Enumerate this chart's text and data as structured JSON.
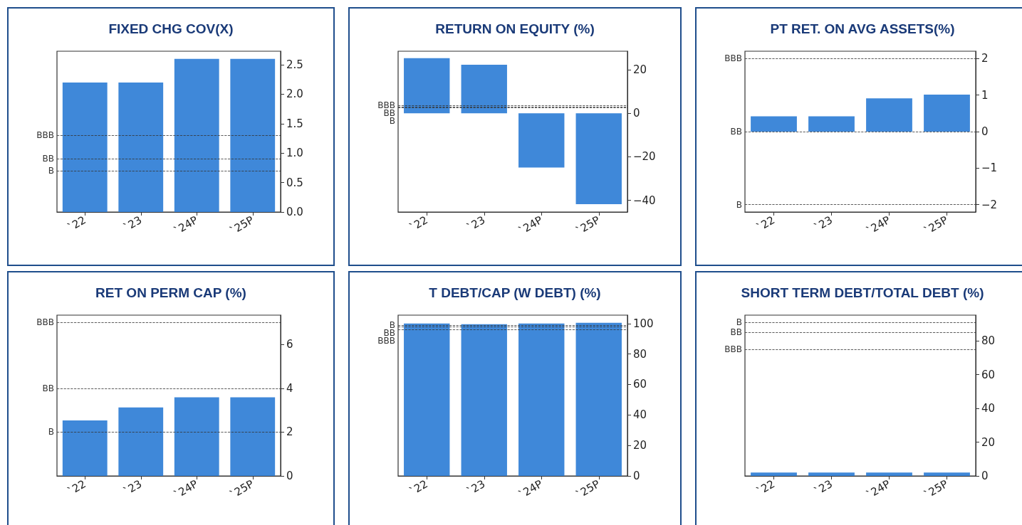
{
  "chart_data": [
    {
      "type": "bar",
      "title": "FIXED CHG COV(X)",
      "categories": [
        "`22",
        "`23",
        "`24P",
        "`25P"
      ],
      "values": [
        2.2,
        2.2,
        2.6,
        2.6
      ],
      "color": "#3f88d9",
      "ylim": [
        0,
        2.73
      ],
      "yticks": [
        {
          "value": 0,
          "label": "0.0"
        },
        {
          "value": 0.5,
          "label": "0.5"
        },
        {
          "value": 1,
          "label": "1.0"
        },
        {
          "value": 1.5,
          "label": "1.5"
        },
        {
          "value": 2,
          "label": "2.0"
        },
        {
          "value": 2.5,
          "label": "2.5"
        }
      ],
      "ref_lines": [
        {
          "axis": "y",
          "value": 1.3,
          "label": "BBB",
          "color": "#333333",
          "line_style": "dashed"
        },
        {
          "axis": "y",
          "value": 0.9,
          "label": "BB",
          "color": "#333333",
          "line_style": "dashed"
        },
        {
          "axis": "y",
          "value": 0.7,
          "label": "B",
          "color": "#333333",
          "line_style": "dashed"
        }
      ]
    },
    {
      "type": "bar",
      "title": "RETURN ON EQUITY (%)",
      "categories": [
        "`22",
        "`23",
        "`24P",
        "`25P"
      ],
      "values": [
        25.4,
        22.4,
        -24.9,
        -41.8
      ],
      "color": "#3f88d9",
      "ylim": [
        -45.4,
        28.6
      ],
      "yticks": [
        {
          "value": -40,
          "label": "−40"
        },
        {
          "value": -20,
          "label": "−20"
        },
        0,
        20
      ],
      "ref_lines": [
        {
          "axis": "y",
          "value": 3.6,
          "label": "BBB",
          "color": "#333333",
          "line_style": "dashed"
        },
        {
          "axis": "y",
          "value": 2.9,
          "label": "BB",
          "color": "#333333",
          "line_style": "dashed"
        },
        {
          "axis": "y",
          "value": 2.7,
          "label": "B",
          "color": "#333333",
          "line_style": "dashed"
        }
      ]
    },
    {
      "type": "bar",
      "title": "PT RET. ON AVG ASSETS(%)",
      "categories": [
        "`22",
        "`23",
        "`24P",
        "`25P"
      ],
      "values": [
        0.42,
        0.42,
        0.91,
        1.01
      ],
      "color": "#3f88d9",
      "ylim": [
        -2.2,
        2.2
      ],
      "yticks": [
        {
          "value": -2,
          "label": "−2"
        },
        {
          "value": -1,
          "label": "−1"
        },
        0,
        1,
        2
      ],
      "ref_lines": [
        {
          "axis": "y",
          "value": 2,
          "label": "BBB",
          "color": "#333333",
          "line_style": "dashed"
        },
        {
          "axis": "y",
          "value": 0,
          "label": "BB",
          "color": "#333333",
          "line_style": "dashed"
        },
        {
          "axis": "y",
          "value": -2,
          "label": "B",
          "color": "#333333",
          "line_style": "dashed"
        }
      ]
    },
    {
      "type": "bar",
      "title": "RET ON PERM CAP (%)",
      "categories": [
        "`22",
        "`23",
        "`24P",
        "`25P"
      ],
      "values": [
        2.53,
        3.13,
        3.59,
        3.59
      ],
      "color": "#3f88d9",
      "ylim": [
        0,
        7.34
      ],
      "yticks": [
        0,
        2,
        4,
        6
      ],
      "ref_lines": [
        {
          "axis": "y",
          "value": 7,
          "label": "BBB",
          "color": "#333333",
          "line_style": "dashed"
        },
        {
          "axis": "y",
          "value": 4,
          "label": "BB",
          "color": "#333333",
          "line_style": "dashed"
        },
        {
          "axis": "y",
          "value": 2,
          "label": "B",
          "color": "#333333",
          "line_style": "dashed"
        }
      ]
    },
    {
      "type": "bar",
      "title": "T DEBT/CAP (W DEBT) (%)",
      "categories": [
        "`22",
        "`23",
        "`24P",
        "`25P"
      ],
      "values": [
        100,
        99.5,
        100,
        100.5
      ],
      "color": "#3f88d9",
      "ylim": [
        0,
        105.5
      ],
      "yticks": [
        0,
        20,
        40,
        60,
        80,
        100
      ],
      "ref_lines": [
        {
          "axis": "y",
          "value": 99,
          "label": "B",
          "color": "#333333",
          "line_style": "dashed"
        },
        {
          "axis": "y",
          "value": 98,
          "label": "BB",
          "color": "#333333",
          "line_style": "dashed"
        },
        {
          "axis": "y",
          "value": 96,
          "label": "BBB",
          "color": "#333333",
          "line_style": "dashed"
        }
      ]
    },
    {
      "type": "bar",
      "title": "SHORT TERM DEBT/TOTAL DEBT (%)",
      "categories": [
        "`22",
        "`23",
        "`24P",
        "`25P"
      ],
      "values": [
        2,
        2,
        2,
        2
      ],
      "color": "#3f88d9",
      "ylim": [
        0,
        95.3
      ],
      "yticks": [
        0,
        20,
        40,
        60,
        80
      ],
      "ref_lines": [
        {
          "axis": "y",
          "value": 91,
          "label": "B",
          "color": "#333333",
          "line_style": "dashed"
        },
        {
          "axis": "y",
          "value": 85,
          "label": "BB",
          "color": "#333333",
          "line_style": "dashed"
        },
        {
          "axis": "y",
          "value": 75,
          "label": "BBB",
          "color": "#333333",
          "line_style": "dashed"
        }
      ]
    }
  ]
}
